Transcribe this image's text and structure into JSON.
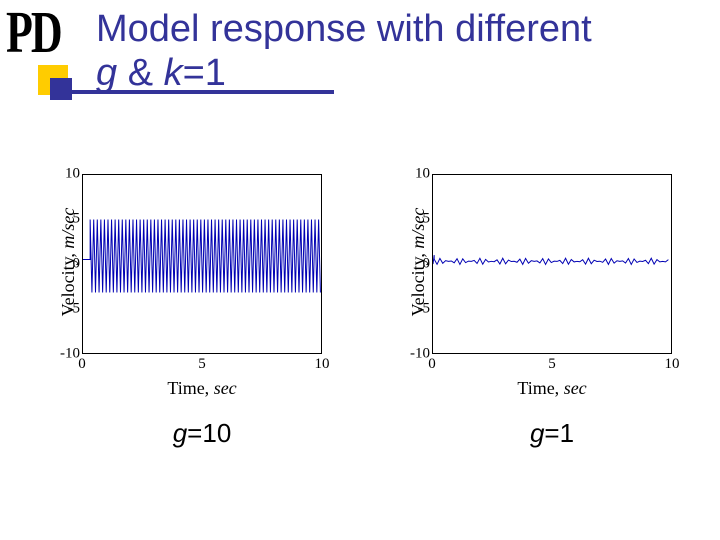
{
  "logo": "PD",
  "title_plain1": "Model response with different",
  "title_g": "g",
  "title_amp": " & ",
  "title_k": "k",
  "title_eq": "=1",
  "axis": {
    "ylabel_main": "Velocity, ",
    "ylabel_unit": "m/sec",
    "xlabel_main": "Time, ",
    "xlabel_unit": "sec",
    "ylim": [
      -10,
      10
    ],
    "yticks": [
      -10,
      -5,
      0,
      5,
      10
    ],
    "xlim": [
      0,
      10
    ],
    "xticks": [
      0,
      5,
      10
    ]
  },
  "colors": {
    "line": "#0000b3",
    "axis": "#000000",
    "title": "#333399",
    "deco_yellow": "#ffcc00",
    "deco_blue": "#333399",
    "background": "#ffffff"
  },
  "left": {
    "caption_g": "g",
    "caption_rest": "=10",
    "signal": {
      "type": "spiky-oscillation",
      "x_start": 0.3,
      "x_end": 10,
      "y_hi": 5.0,
      "y_lo": -3.2,
      "baseline": 0.5,
      "period": 0.15,
      "line_width": 1
    }
  },
  "right": {
    "caption_g": "g",
    "caption_rest": "=1",
    "signal": {
      "type": "flat-noise",
      "x_start": 0.05,
      "x_end": 10,
      "baseline": 0.3,
      "noise_amp": 0.35,
      "period": 0.12,
      "line_width": 1
    }
  },
  "fontsize": {
    "title": 38,
    "axis_label": 18,
    "tick": 15,
    "caption": 26
  }
}
